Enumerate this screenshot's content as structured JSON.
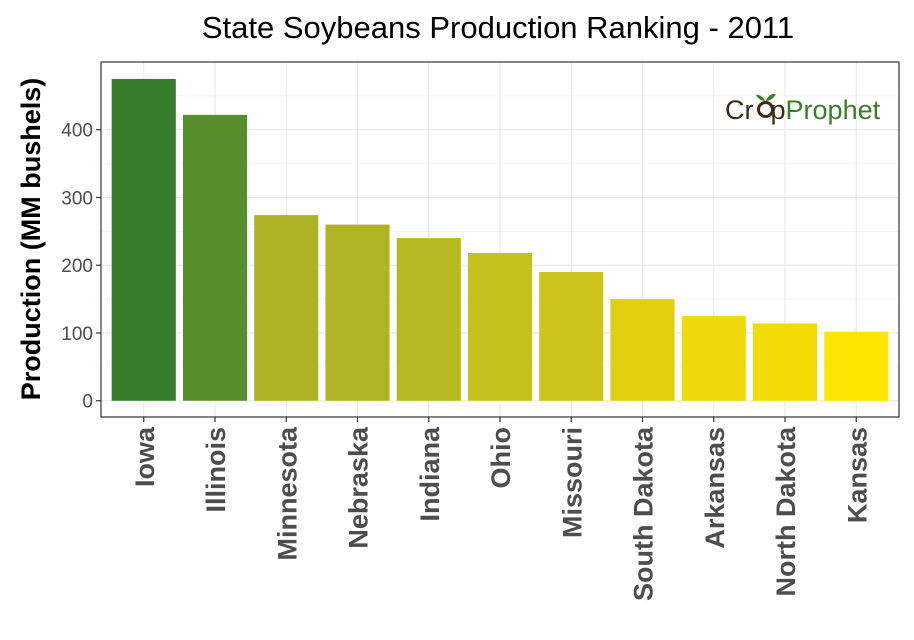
{
  "chart_data": {
    "type": "bar",
    "title": "State Soybeans Production Ranking - 2011",
    "ylabel": "Production (MM bushels)",
    "xlabel": "",
    "categories": [
      "Iowa",
      "Illinois",
      "Minnesota",
      "Nebraska",
      "Indiana",
      "Ohio",
      "Missouri",
      "South Dakota",
      "Arkansas",
      "North Dakota",
      "Kansas"
    ],
    "values": [
      475,
      422,
      274,
      260,
      240,
      218,
      190,
      150,
      125,
      114,
      102
    ],
    "colors": [
      "#367C2B",
      "#578F2D",
      "#AEB325",
      "#AFB424",
      "#B7B922",
      "#C3C11E",
      "#CCC41A",
      "#E2D00F",
      "#EDD90C",
      "#F2DC06",
      "#FFE400"
    ],
    "yticks": [
      0,
      100,
      200,
      300,
      400
    ],
    "ylim": [
      -24,
      500
    ],
    "grid": true,
    "legend": "none"
  },
  "watermark": {
    "part1": "Cr",
    "part2": "p",
    "part3": "Prophet",
    "color_dark": "#3d2b14",
    "color_green": "#3a7d2c"
  }
}
